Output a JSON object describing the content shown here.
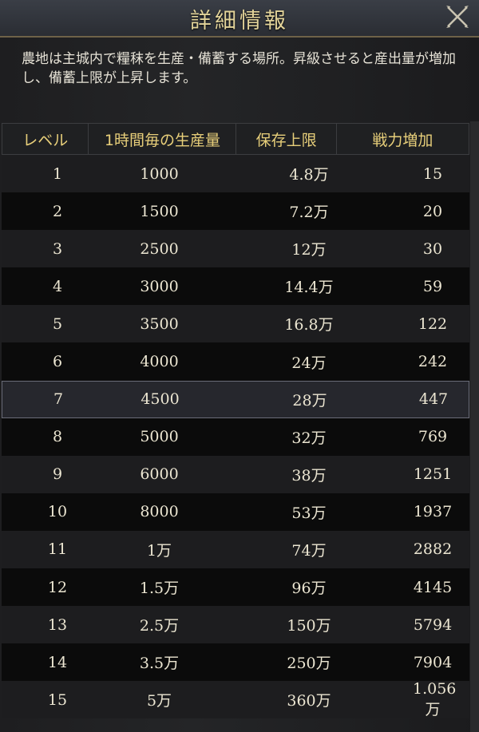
{
  "header": {
    "title": "詳細情報",
    "close_icon": "close-x-icon"
  },
  "description": "農地は主城内で糧秣を生産・備蓄する場所。昇級させると産出量が増加し、備蓄上限が上昇します。",
  "table": {
    "columns": [
      "レベル",
      "1時間毎の生産量",
      "保存上限",
      "戦力増加"
    ],
    "selected_level": "7",
    "rows": [
      [
        "1",
        "1000",
        "4.8万",
        "15"
      ],
      [
        "2",
        "1500",
        "7.2万",
        "20"
      ],
      [
        "3",
        "2500",
        "12万",
        "30"
      ],
      [
        "4",
        "3000",
        "14.4万",
        "59"
      ],
      [
        "5",
        "3500",
        "16.8万",
        "122"
      ],
      [
        "6",
        "4000",
        "24万",
        "242"
      ],
      [
        "7",
        "4500",
        "28万",
        "447"
      ],
      [
        "8",
        "5000",
        "32万",
        "769"
      ],
      [
        "9",
        "6000",
        "38万",
        "1251"
      ],
      [
        "10",
        "8000",
        "53万",
        "1937"
      ],
      [
        "11",
        "1万",
        "74万",
        "2882"
      ],
      [
        "12",
        "1.5万",
        "96万",
        "4145"
      ],
      [
        "13",
        "2.5万",
        "150万",
        "5794"
      ],
      [
        "14",
        "3.5万",
        "250万",
        "7904"
      ],
      [
        "15",
        "5万",
        "360万",
        "1.056万"
      ]
    ]
  }
}
